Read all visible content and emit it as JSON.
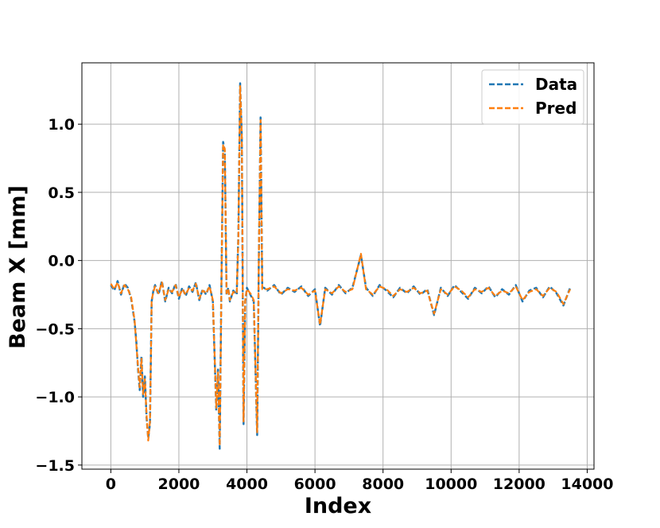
{
  "chart_data": {
    "type": "line",
    "title": "",
    "xlabel": "Index",
    "ylabel": "Beam X [mm]",
    "xlim": [
      -850,
      14200
    ],
    "ylim": [
      -1.53,
      1.45
    ],
    "xticks": [
      0,
      2000,
      4000,
      6000,
      8000,
      10000,
      12000,
      14000
    ],
    "xtick_labels": [
      "0",
      "2000",
      "4000",
      "6000",
      "8000",
      "10000",
      "12000",
      "14000"
    ],
    "yticks": [
      1.0,
      0.5,
      0.0,
      -0.5,
      -1.0,
      -1.5
    ],
    "ytick_labels": [
      "1.0",
      "0.5",
      "0.0",
      "−0.5",
      "−1.0",
      "−1.5"
    ],
    "grid": true,
    "legend_position": "upper right",
    "colors": {
      "data": "#1f77b4",
      "pred": "#ff7f0e",
      "grid": "#b0b0b0"
    },
    "series": [
      {
        "name": "Data",
        "style": "dashed",
        "x": [
          0,
          100,
          200,
          300,
          400,
          500,
          600,
          700,
          750,
          800,
          850,
          900,
          950,
          1000,
          1050,
          1100,
          1150,
          1200,
          1250,
          1300,
          1400,
          1500,
          1600,
          1700,
          1800,
          1900,
          2000,
          2100,
          2200,
          2300,
          2400,
          2500,
          2600,
          2700,
          2800,
          2900,
          3000,
          3100,
          3150,
          3200,
          3250,
          3300,
          3350,
          3400,
          3450,
          3500,
          3600,
          3700,
          3750,
          3800,
          3850,
          3900,
          3950,
          4000,
          4100,
          4200,
          4300,
          4350,
          4400,
          4450,
          4500,
          4600,
          4800,
          5000,
          5200,
          5400,
          5600,
          5800,
          6000,
          6150,
          6300,
          6500,
          6700,
          6900,
          7100,
          7350,
          7500,
          7700,
          7900,
          8100,
          8300,
          8500,
          8700,
          8900,
          9100,
          9300,
          9500,
          9700,
          9900,
          10100,
          10300,
          10500,
          10700,
          10900,
          11100,
          11300,
          11500,
          11700,
          11900,
          12100,
          12300,
          12500,
          12700,
          12900,
          13100,
          13300,
          13500
        ],
        "y": [
          -0.18,
          -0.22,
          -0.15,
          -0.25,
          -0.17,
          -0.2,
          -0.28,
          -0.45,
          -0.6,
          -0.8,
          -0.95,
          -0.7,
          -1.0,
          -0.85,
          -1.15,
          -1.3,
          -1.2,
          -0.3,
          -0.22,
          -0.18,
          -0.25,
          -0.15,
          -0.3,
          -0.2,
          -0.24,
          -0.17,
          -0.28,
          -0.2,
          -0.26,
          -0.19,
          -0.23,
          -0.16,
          -0.29,
          -0.21,
          -0.25,
          -0.18,
          -0.3,
          -1.1,
          -0.8,
          -1.38,
          -0.2,
          0.87,
          0.8,
          -0.25,
          -0.2,
          -0.3,
          -0.22,
          -0.25,
          0.2,
          1.3,
          0.9,
          -1.2,
          -0.3,
          -0.2,
          -0.25,
          -0.3,
          -1.28,
          0.0,
          1.05,
          -0.2,
          -0.2,
          -0.22,
          -0.18,
          -0.25,
          -0.2,
          -0.23,
          -0.19,
          -0.26,
          -0.21,
          -0.48,
          -0.2,
          -0.25,
          -0.18,
          -0.24,
          -0.2,
          0.04,
          -0.2,
          -0.26,
          -0.18,
          -0.22,
          -0.27,
          -0.2,
          -0.24,
          -0.19,
          -0.25,
          -0.21,
          -0.4,
          -0.2,
          -0.26,
          -0.18,
          -0.23,
          -0.28,
          -0.2,
          -0.24,
          -0.19,
          -0.27,
          -0.21,
          -0.25,
          -0.18,
          -0.3,
          -0.22,
          -0.2,
          -0.27,
          -0.19,
          -0.24,
          -0.33,
          -0.2
        ]
      },
      {
        "name": "Pred",
        "style": "dashed",
        "x": [
          0,
          100,
          200,
          300,
          400,
          500,
          600,
          700,
          750,
          800,
          850,
          900,
          950,
          1000,
          1050,
          1100,
          1150,
          1200,
          1250,
          1300,
          1400,
          1500,
          1600,
          1700,
          1800,
          1900,
          2000,
          2100,
          2200,
          2300,
          2400,
          2500,
          2600,
          2700,
          2800,
          2900,
          3000,
          3100,
          3150,
          3200,
          3250,
          3300,
          3350,
          3400,
          3450,
          3500,
          3600,
          3700,
          3750,
          3800,
          3850,
          3900,
          3950,
          4000,
          4100,
          4200,
          4300,
          4350,
          4400,
          4450,
          4500,
          4600,
          4800,
          5000,
          5200,
          5400,
          5600,
          5800,
          6000,
          6150,
          6300,
          6500,
          6700,
          6900,
          7100,
          7350,
          7500,
          7700,
          7900,
          8100,
          8300,
          8500,
          8700,
          8900,
          9100,
          9300,
          9500,
          9700,
          9900,
          10100,
          10300,
          10500,
          10700,
          10900,
          11100,
          11300,
          11500,
          11700,
          11900,
          12100,
          12300,
          12500,
          12700,
          12900,
          13100,
          13300,
          13500
        ],
        "y": [
          -0.17,
          -0.21,
          -0.16,
          -0.24,
          -0.18,
          -0.21,
          -0.27,
          -0.44,
          -0.62,
          -0.78,
          -0.93,
          -0.72,
          -0.98,
          -0.87,
          -1.13,
          -1.32,
          -1.18,
          -0.29,
          -0.23,
          -0.19,
          -0.24,
          -0.16,
          -0.29,
          -0.21,
          -0.23,
          -0.18,
          -0.27,
          -0.21,
          -0.25,
          -0.2,
          -0.22,
          -0.17,
          -0.28,
          -0.22,
          -0.24,
          -0.19,
          -0.29,
          -1.08,
          -0.82,
          -1.36,
          -0.21,
          0.85,
          0.82,
          -0.24,
          -0.21,
          -0.29,
          -0.23,
          -0.24,
          0.18,
          1.28,
          0.92,
          -1.18,
          -0.29,
          -0.21,
          -0.24,
          -0.29,
          -1.26,
          0.02,
          1.03,
          -0.21,
          -0.21,
          -0.21,
          -0.19,
          -0.24,
          -0.21,
          -0.22,
          -0.2,
          -0.25,
          -0.22,
          -0.47,
          -0.21,
          -0.24,
          -0.19,
          -0.23,
          -0.21,
          0.05,
          -0.21,
          -0.25,
          -0.19,
          -0.21,
          -0.26,
          -0.21,
          -0.23,
          -0.2,
          -0.24,
          -0.22,
          -0.39,
          -0.21,
          -0.25,
          -0.19,
          -0.22,
          -0.27,
          -0.21,
          -0.23,
          -0.2,
          -0.26,
          -0.22,
          -0.24,
          -0.19,
          -0.29,
          -0.23,
          -0.21,
          -0.26,
          -0.2,
          -0.23,
          -0.32,
          -0.21
        ]
      }
    ]
  }
}
